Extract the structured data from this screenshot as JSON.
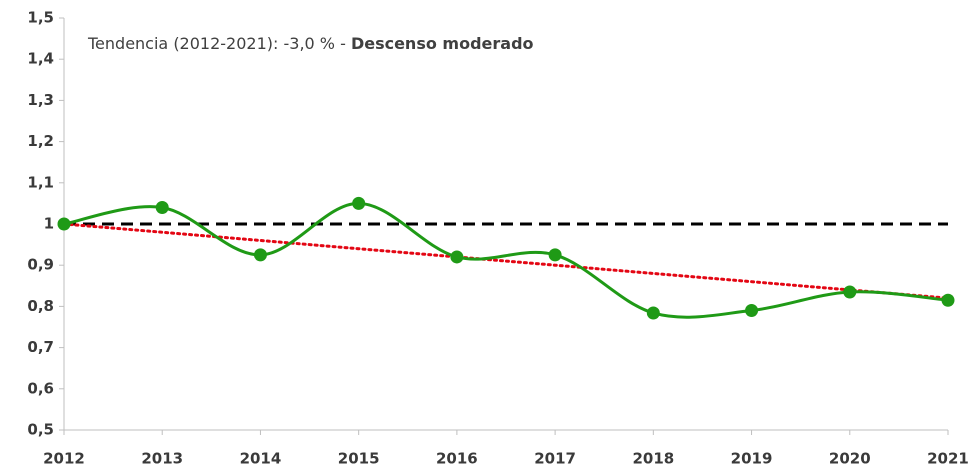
{
  "chart_data": {
    "type": "line",
    "annotation": "Tendencia (2012-2021): -3,0 % - ",
    "annotation_bold": "Descenso moderado",
    "x": [
      2012,
      2013,
      2014,
      2015,
      2016,
      2017,
      2018,
      2019,
      2020,
      2021
    ],
    "xlim": [
      2012,
      2021
    ],
    "xticks": [
      2012,
      2013,
      2014,
      2015,
      2016,
      2017,
      2018,
      2019,
      2020,
      2021
    ],
    "ylim": [
      0.5,
      1.5
    ],
    "yticks": [
      {
        "value": 0.5,
        "label": "0,5"
      },
      {
        "value": 0.6,
        "label": "0,6"
      },
      {
        "value": 0.7,
        "label": "0,7"
      },
      {
        "value": 0.8,
        "label": "0,8"
      },
      {
        "value": 0.9,
        "label": "0,9"
      },
      1,
      {
        "value": 1.1,
        "label": "1,1"
      },
      {
        "value": 1.2,
        "label": "1,2"
      },
      {
        "value": 1.3,
        "label": "1,3"
      },
      {
        "value": 1.4,
        "label": "1,4"
      },
      {
        "value": 1.5,
        "label": "1,5"
      }
    ],
    "grid": false,
    "series": [
      {
        "color": "#000000",
        "style": "dashed",
        "values": [
          1,
          1,
          1,
          1,
          1,
          1,
          1,
          1,
          1,
          1
        ]
      },
      {
        "color": "#e30613",
        "style": "dotted",
        "values": [
          1,
          0.98,
          0.96,
          0.94,
          0.92,
          0.9,
          0.88,
          0.86,
          0.84,
          0.82
        ]
      },
      {
        "color": "#1f9a16",
        "style": "smooth",
        "markers": true,
        "values": [
          1.0,
          1.04,
          0.925,
          1.05,
          0.92,
          0.925,
          0.784,
          0.79,
          0.835,
          0.815
        ]
      }
    ]
  }
}
